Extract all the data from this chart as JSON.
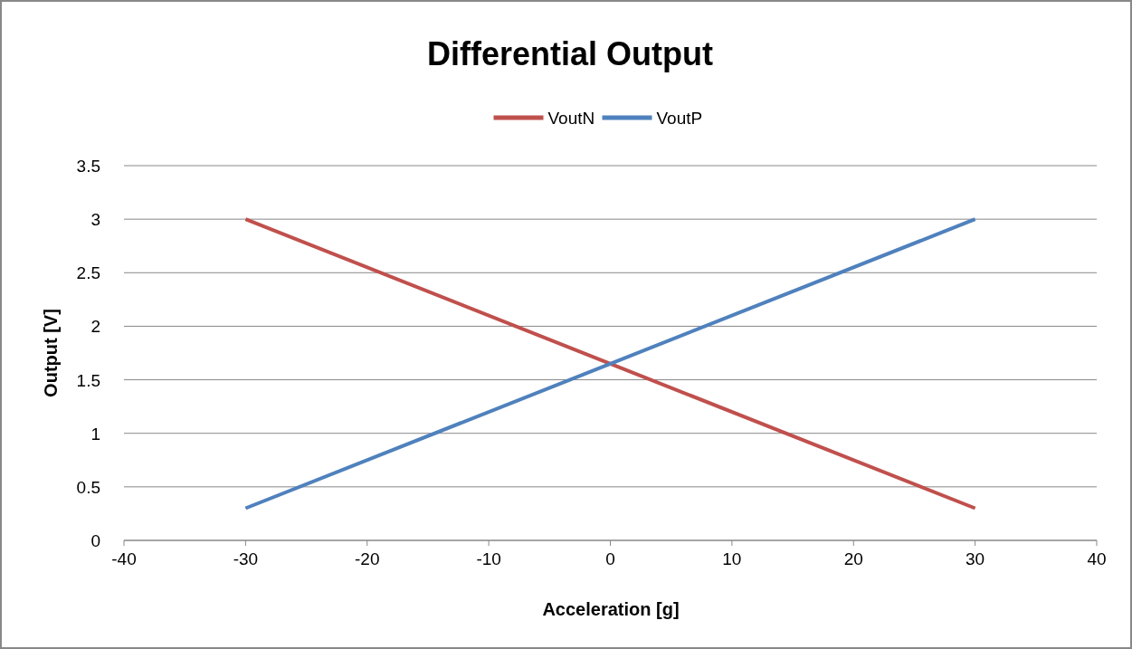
{
  "chart_data": {
    "type": "line",
    "title": "Differential Output",
    "xlabel": "Acceleration [g]",
    "ylabel": "Output [V]",
    "x": [
      -30,
      0,
      30
    ],
    "series": [
      {
        "name": "VoutN",
        "color": "#c0504d",
        "values": [
          3,
          1.65,
          0.3
        ]
      },
      {
        "name": "VoutP",
        "color": "#4f81bd",
        "values": [
          0.3,
          1.65,
          3
        ]
      }
    ],
    "xlim": [
      -40,
      40
    ],
    "xticks": [
      -40,
      -30,
      -20,
      -10,
      0,
      10,
      20,
      30,
      40
    ],
    "ylim": [
      0,
      3.5
    ],
    "yticks": [
      0,
      0.5,
      1,
      1.5,
      2,
      2.5,
      3,
      3.5
    ],
    "grid": "y",
    "legend": "top",
    "marker": "none",
    "line_style": "solid"
  }
}
